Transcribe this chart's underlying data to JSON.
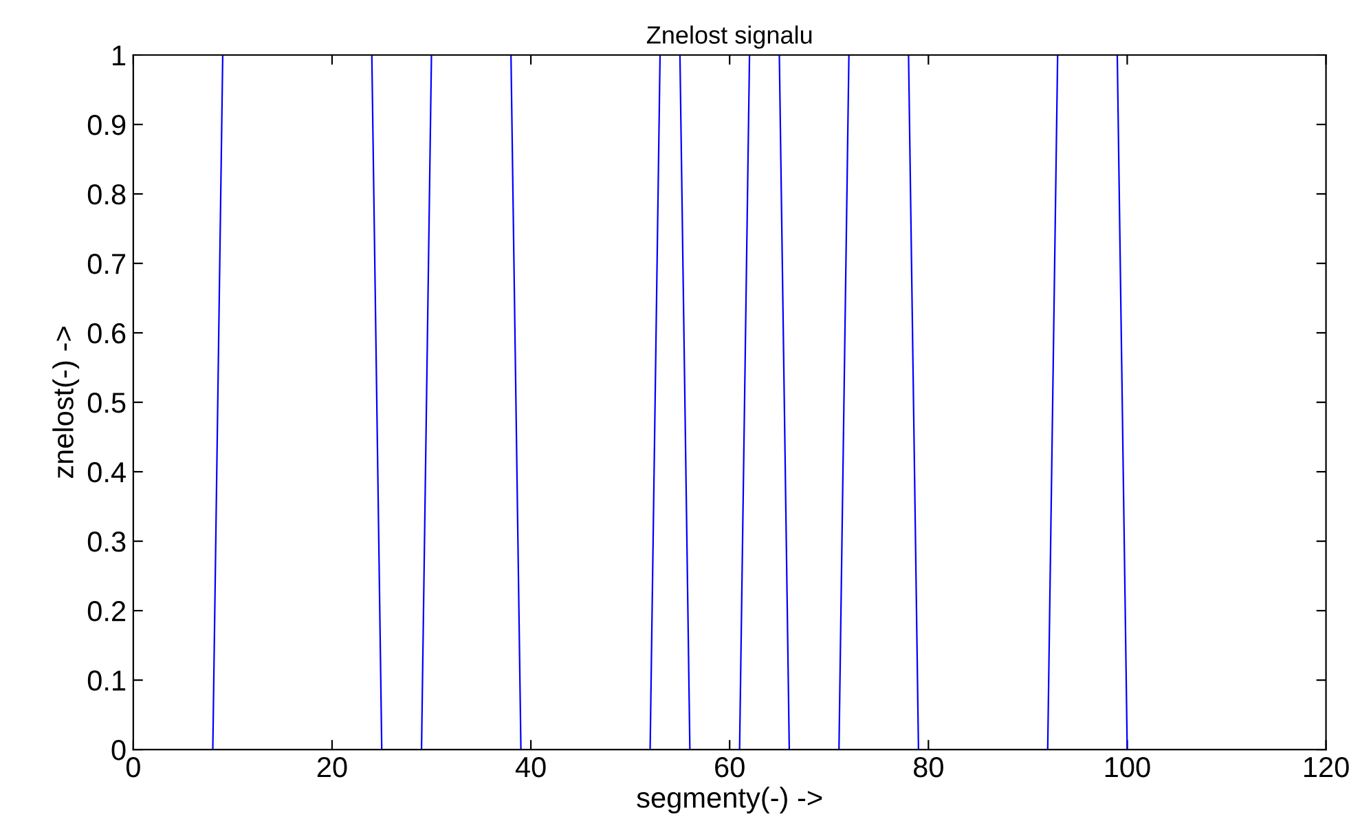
{
  "chart_data": {
    "type": "line",
    "title": "Znelost signalu",
    "xlabel": "segmenty(-) ->",
    "ylabel": "znelost(-) ->",
    "x": [
      1,
      8,
      9,
      24,
      25,
      29,
      30,
      38,
      39,
      52,
      53,
      55,
      56,
      61,
      62,
      65,
      66,
      71,
      72,
      78,
      79,
      92,
      93,
      99,
      100,
      116
    ],
    "series": [
      {
        "color": "#0000ff",
        "values": [
          0,
          0,
          1,
          1,
          0,
          0,
          1,
          1,
          0,
          0,
          1,
          1,
          0,
          0,
          1,
          1,
          0,
          0,
          1,
          1,
          0,
          0,
          1,
          1,
          0,
          0
        ]
      }
    ],
    "xlim": [
      0,
      120
    ],
    "ylim": [
      0,
      1
    ],
    "xticks": [
      0,
      20,
      40,
      60,
      80,
      100,
      120
    ],
    "yticks": [
      0,
      0.1,
      0.2,
      0.3,
      0.4,
      0.5,
      0.6,
      0.7,
      0.8,
      0.9,
      1
    ],
    "grid": false,
    "legend": false,
    "marker": "none",
    "line_style": "solid"
  }
}
